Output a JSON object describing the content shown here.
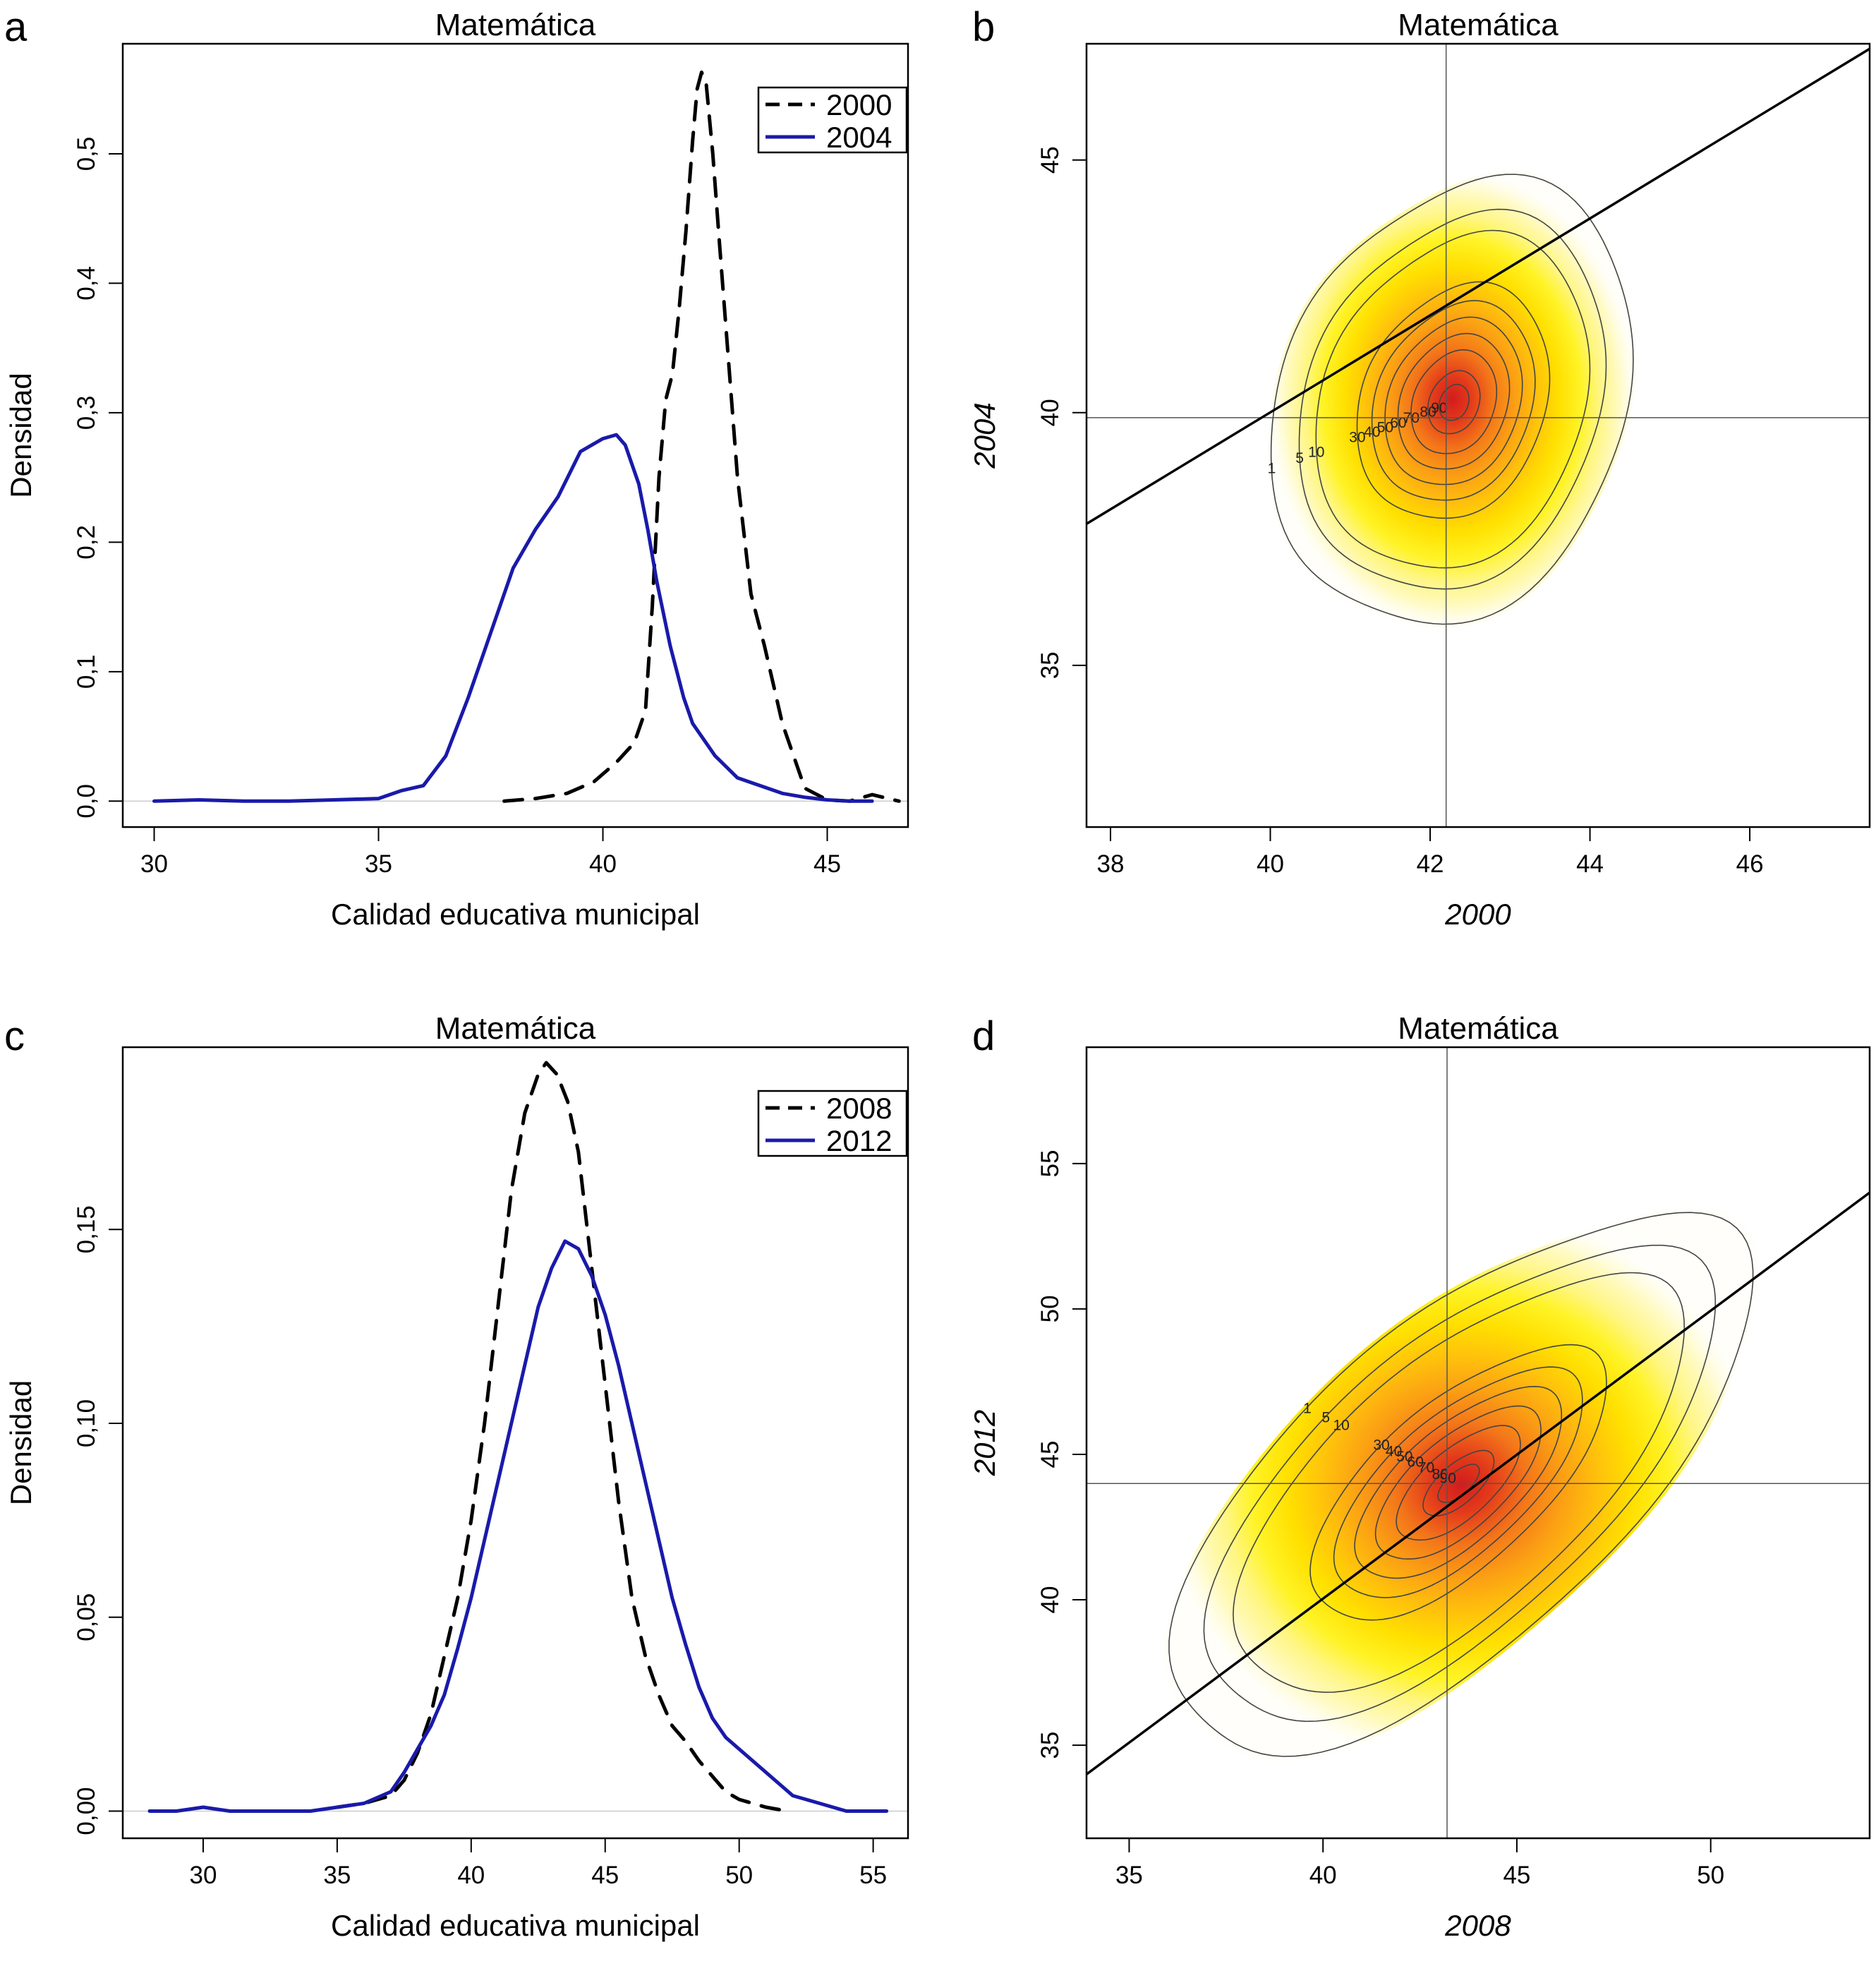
{
  "charts": [
    {
      "panel": "a",
      "type": "line",
      "title": "Matemática",
      "xlabel": "Calidad educativa municipal",
      "ylabel": "Densidad",
      "xlim": [
        29.3,
        46.8
      ],
      "ylim": [
        -0.02,
        0.585
      ],
      "xticks": [
        "30",
        "35",
        "40",
        "45"
      ],
      "xtick_values": [
        30,
        35,
        40,
        45
      ],
      "yticks": [
        "0,0",
        "0,1",
        "0,2",
        "0,3",
        "0,4",
        "0,5"
      ],
      "ytick_values": [
        0,
        0.1,
        0.2,
        0.3,
        0.4,
        0.5
      ],
      "legend": {
        "position": "top-right",
        "entries": [
          "2000",
          "2004"
        ]
      },
      "series": [
        {
          "name": "2000",
          "style": "dashed",
          "color": "#000000",
          "x": [
            37.8,
            38.5,
            39.2,
            39.8,
            40.3,
            40.7,
            40.95,
            41.1,
            41.25,
            41.4,
            41.55,
            41.7,
            41.85,
            42.0,
            42.1,
            42.2,
            42.3,
            42.45,
            42.6,
            42.8,
            43.0,
            43.3,
            43.6,
            44.0,
            44.5,
            45.0,
            45.5,
            46.0,
            46.6
          ],
          "y": [
            0.0,
            0.002,
            0.006,
            0.015,
            0.03,
            0.045,
            0.07,
            0.15,
            0.25,
            0.31,
            0.33,
            0.38,
            0.44,
            0.51,
            0.55,
            0.563,
            0.555,
            0.5,
            0.43,
            0.34,
            0.25,
            0.16,
            0.12,
            0.06,
            0.01,
            0.001,
            0.0,
            0.005,
            0.0
          ]
        },
        {
          "name": "2004",
          "style": "solid",
          "color": "#1a1aaa",
          "x": [
            30.0,
            31.0,
            32.0,
            33.0,
            34.0,
            35.0,
            35.5,
            36.0,
            36.5,
            37.0,
            37.5,
            38.0,
            38.5,
            39.0,
            39.5,
            40.0,
            40.3,
            40.5,
            40.8,
            41.0,
            41.2,
            41.5,
            41.8,
            42.0,
            42.5,
            43.0,
            43.5,
            44.0,
            44.5,
            45.0,
            45.5,
            46.0
          ],
          "y": [
            0.0,
            0.001,
            0.0,
            0.0,
            0.001,
            0.002,
            0.008,
            0.012,
            0.035,
            0.08,
            0.13,
            0.18,
            0.21,
            0.235,
            0.27,
            0.28,
            0.283,
            0.275,
            0.245,
            0.21,
            0.17,
            0.12,
            0.08,
            0.06,
            0.035,
            0.018,
            0.012,
            0.006,
            0.003,
            0.001,
            0.0,
            0.0
          ]
        }
      ]
    },
    {
      "panel": "b",
      "type": "heatmap",
      "title": "Matemática",
      "xlabel": "2000",
      "ylabel": "2004",
      "xlim": [
        37.7,
        47.5
      ],
      "ylim": [
        31.8,
        47.3
      ],
      "xticks": [
        "38",
        "40",
        "42",
        "44",
        "46"
      ],
      "xtick_values": [
        38,
        40,
        42,
        44,
        46
      ],
      "yticks": [
        "35",
        "40",
        "45"
      ],
      "ytick_values": [
        35,
        40,
        45
      ],
      "center": [
        42.2,
        39.9
      ],
      "reference_line": {
        "x": [
          37.7,
          47.5
        ],
        "y": [
          37.8,
          47.2
        ]
      },
      "contour_levels": [
        1,
        5,
        10,
        30,
        40,
        50,
        60,
        70,
        80,
        90
      ],
      "contour_labels": [
        "1",
        "5",
        "10",
        "30",
        "40",
        "50",
        "60",
        "70",
        "80",
        "90"
      ],
      "density_center": [
        42.3,
        40.2
      ]
    },
    {
      "panel": "c",
      "type": "line",
      "title": "Matemática",
      "xlabel": "Calidad educativa municipal",
      "ylabel": "Densidad",
      "xlim": [
        27.0,
        56.3
      ],
      "ylim": [
        -0.007,
        0.197
      ],
      "xticks": [
        "30",
        "35",
        "40",
        "45",
        "50",
        "55"
      ],
      "xtick_values": [
        30,
        35,
        40,
        45,
        50,
        55
      ],
      "yticks": [
        "0,00",
        "0,05",
        "0,10",
        "0,15"
      ],
      "ytick_values": [
        0,
        0.05,
        0.1,
        0.15
      ],
      "legend": {
        "position": "top-right",
        "entries": [
          "2008",
          "2012"
        ]
      },
      "series": [
        {
          "name": "2008",
          "style": "dashed",
          "color": "#000000",
          "x": [
            35.0,
            36.0,
            37.0,
            37.5,
            38.0,
            38.5,
            39.0,
            39.5,
            40.0,
            40.5,
            41.0,
            41.5,
            42.0,
            42.5,
            42.8,
            43.2,
            43.6,
            44.0,
            44.5,
            45.0,
            45.5,
            46.0,
            46.5,
            47.0,
            47.5,
            48.0,
            48.5,
            49.0,
            49.5,
            50.0,
            50.5,
            51.0,
            51.8
          ],
          "y": [
            0.001,
            0.002,
            0.004,
            0.008,
            0.015,
            0.025,
            0.04,
            0.055,
            0.075,
            0.1,
            0.13,
            0.16,
            0.18,
            0.19,
            0.193,
            0.19,
            0.183,
            0.17,
            0.14,
            0.11,
            0.08,
            0.055,
            0.04,
            0.03,
            0.022,
            0.018,
            0.013,
            0.009,
            0.005,
            0.003,
            0.002,
            0.001,
            0.0
          ]
        },
        {
          "name": "2012",
          "style": "solid",
          "color": "#1a1aaa",
          "x": [
            28.0,
            29.0,
            30.0,
            31.0,
            32.0,
            33.0,
            34.0,
            35.0,
            36.0,
            37.0,
            37.5,
            38.0,
            38.5,
            39.0,
            39.5,
            40.0,
            40.5,
            41.0,
            41.5,
            42.0,
            42.5,
            43.0,
            43.5,
            44.0,
            44.5,
            45.0,
            45.5,
            46.0,
            46.5,
            47.0,
            47.5,
            48.0,
            48.5,
            49.0,
            49.5,
            50.0,
            50.5,
            51.0,
            51.5,
            52.0,
            53.0,
            54.0,
            55.5
          ],
          "y": [
            0.0,
            0.0,
            0.001,
            0.0,
            0.0,
            0.0,
            0.0,
            0.001,
            0.002,
            0.005,
            0.01,
            0.016,
            0.022,
            0.03,
            0.042,
            0.055,
            0.07,
            0.085,
            0.1,
            0.115,
            0.13,
            0.14,
            0.147,
            0.145,
            0.138,
            0.128,
            0.115,
            0.1,
            0.085,
            0.07,
            0.055,
            0.043,
            0.032,
            0.024,
            0.019,
            0.016,
            0.013,
            0.01,
            0.007,
            0.004,
            0.002,
            0.0,
            0.0
          ]
        }
      ]
    },
    {
      "panel": "d",
      "type": "heatmap",
      "title": "Matemática",
      "xlabel": "2008",
      "ylabel": "2012",
      "xlim": [
        33.9,
        54.1
      ],
      "ylim": [
        31.8,
        59.0
      ],
      "xticks": [
        "35",
        "40",
        "45",
        "50"
      ],
      "xtick_values": [
        35,
        40,
        45,
        50
      ],
      "yticks": [
        "35",
        "40",
        "45",
        "50",
        "55"
      ],
      "ytick_values": [
        35,
        40,
        45,
        50,
        55
      ],
      "center": [
        43.2,
        44.0
      ],
      "reference_line": {
        "x": [
          33.9,
          54.1
        ],
        "y": [
          34.0,
          54.0
        ]
      },
      "contour_levels": [
        1,
        5,
        10,
        30,
        40,
        50,
        60,
        70,
        80,
        90
      ],
      "contour_labels": [
        "1",
        "5",
        "10",
        "30",
        "40",
        "50",
        "60",
        "70",
        "80",
        "90"
      ],
      "density_center": [
        43.5,
        44.0
      ]
    }
  ]
}
